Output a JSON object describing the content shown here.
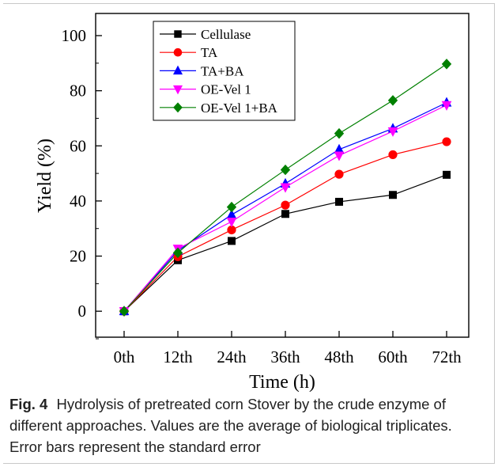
{
  "figure": {
    "label": "Fig. 4",
    "caption": "Hydrolysis of pretreated corn Stover by the crude enzyme of different approaches. Values are the average of biological triplicates. Error bars represent the standard error"
  },
  "chart_data": {
    "type": "line",
    "xlabel": "Time (h)",
    "ylabel": "Yield (%)",
    "categories": [
      "0th",
      "12th",
      "24th",
      "36th",
      "48th",
      "60th",
      "72th"
    ],
    "ylim": [
      -10,
      100
    ],
    "yticks": [
      0,
      20,
      40,
      60,
      80,
      100
    ],
    "grid": false,
    "legend_position": "top-left",
    "series": [
      {
        "name": "Cellulase",
        "color": "#000000",
        "marker": "square",
        "values": [
          0,
          18.5,
          25.5,
          35.3,
          39.7,
          42.2,
          49.5
        ]
      },
      {
        "name": "TA",
        "color": "#ff0000",
        "marker": "circle",
        "values": [
          0,
          19.8,
          29.5,
          38.5,
          49.7,
          56.8,
          61.5
        ]
      },
      {
        "name": "TA+BA",
        "color": "#0000ff",
        "marker": "triangle-up",
        "values": [
          0,
          22.0,
          35.0,
          46.3,
          58.7,
          66.3,
          75.7
        ]
      },
      {
        "name": "OE-Vel 1",
        "color": "#ff00ff",
        "marker": "triangle-down",
        "values": [
          0,
          22.7,
          32.5,
          45.0,
          56.5,
          65.3,
          74.8
        ]
      },
      {
        "name": "OE-Vel 1+BA",
        "color": "#008000",
        "marker": "diamond",
        "values": [
          0,
          21.2,
          37.8,
          51.3,
          64.5,
          76.5,
          89.7
        ]
      }
    ]
  }
}
